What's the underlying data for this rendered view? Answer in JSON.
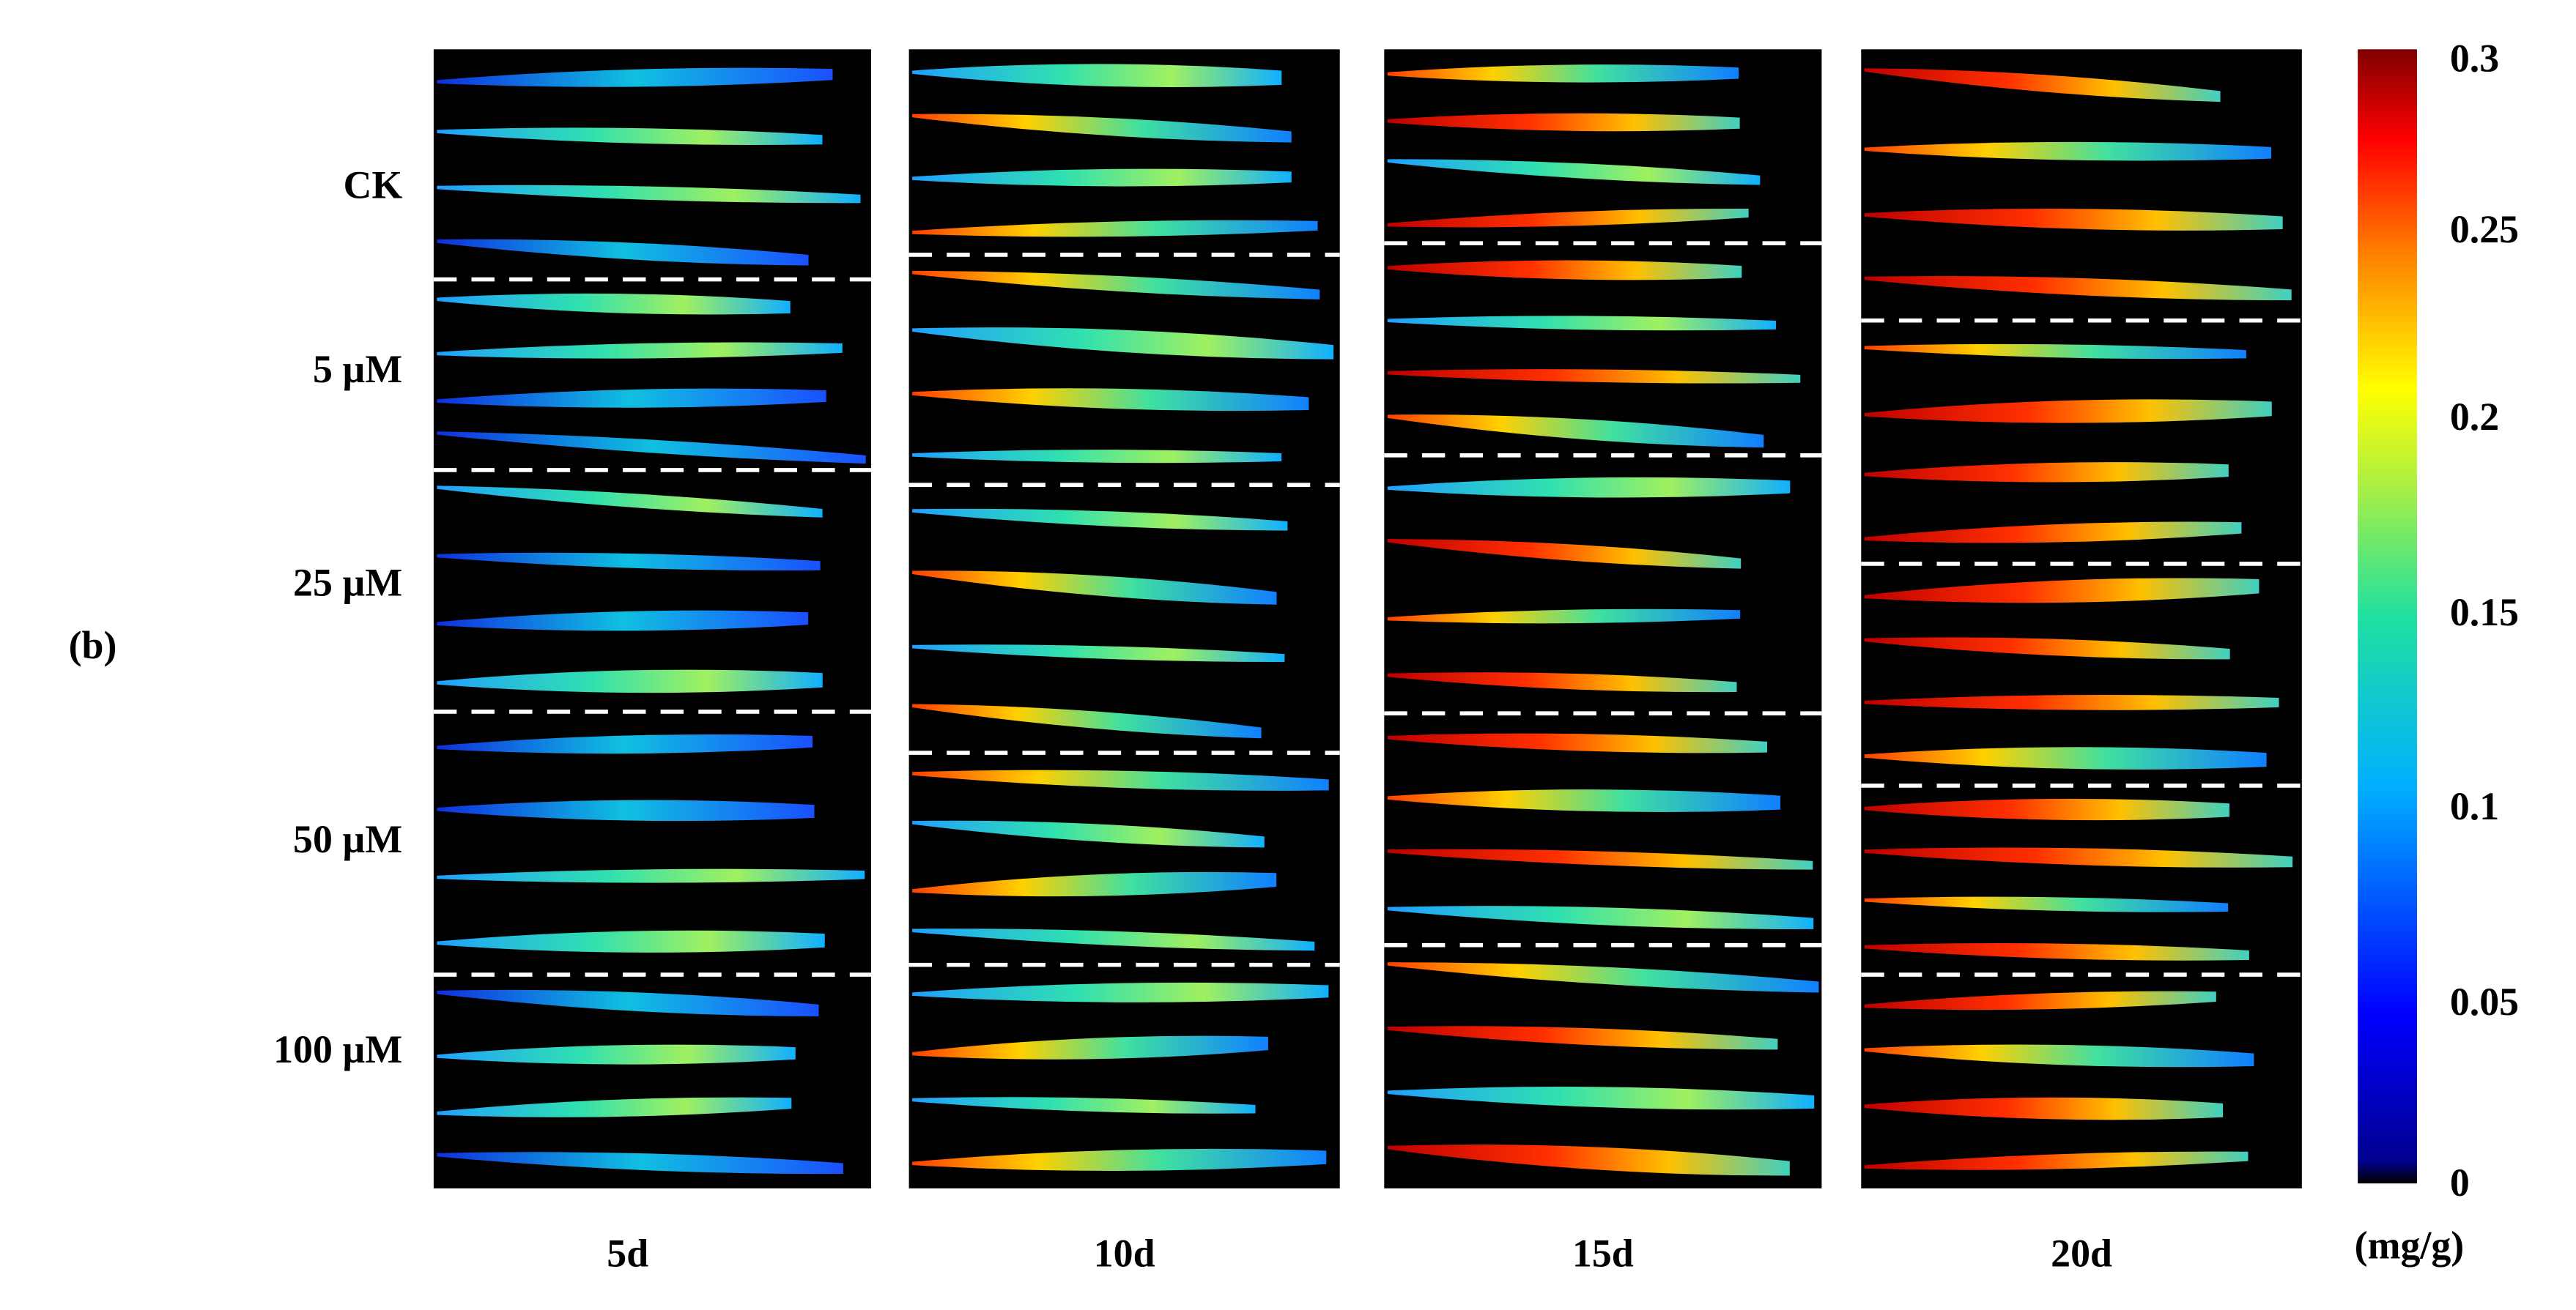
{
  "panel_label": "(b)",
  "row_labels": [
    "CK",
    "5 µM",
    "25 µM",
    "50 µM",
    "100 µM"
  ],
  "column_labels": [
    "5d",
    "10d",
    "15d",
    "20d"
  ],
  "colorbar": {
    "ticks": [
      "0.3",
      "0.25",
      "0.2",
      "0.15",
      "0.1",
      "0.05",
      "0"
    ],
    "unit": "(mg/g)"
  }
}
